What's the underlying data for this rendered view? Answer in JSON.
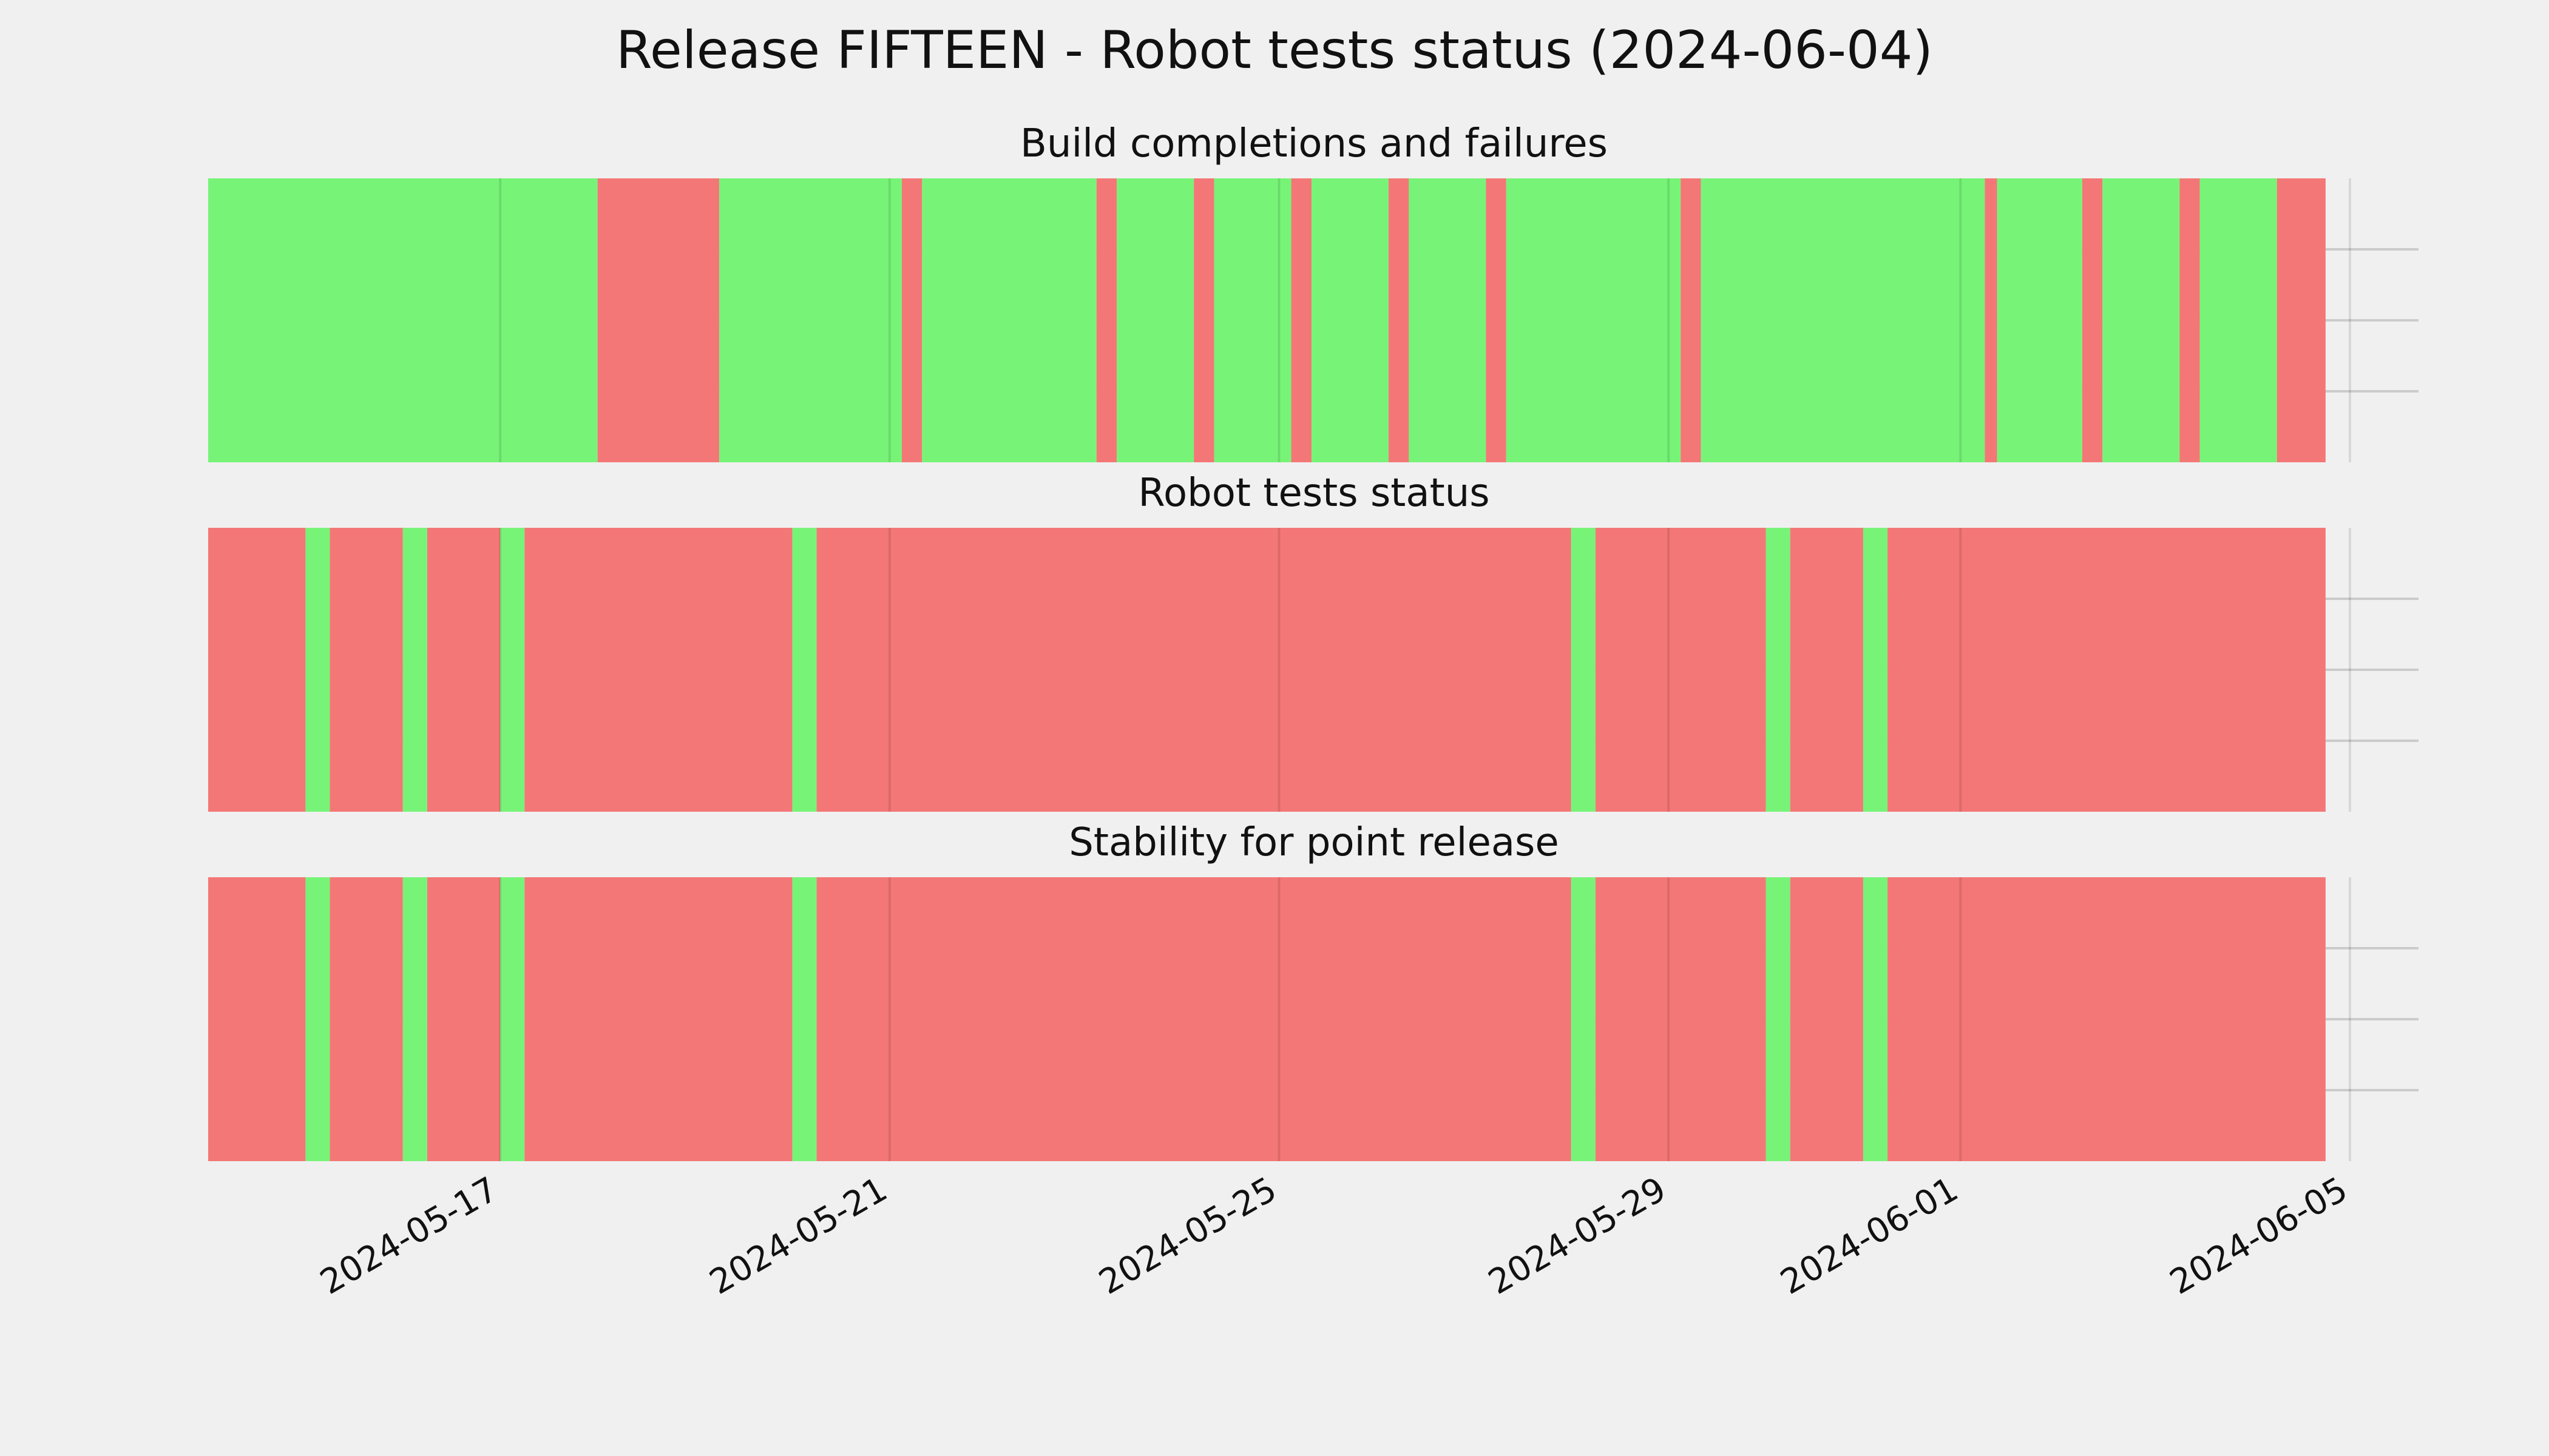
{
  "chart_data": {
    "type": "timeline",
    "title": "Release FIFTEEN - Robot tests status (2024-06-04)",
    "x_axis": {
      "type": "date",
      "range": [
        "2024-05-14T00:00",
        "2024-06-05T00:00"
      ],
      "ticks": [
        "2024-05-17",
        "2024-05-21",
        "2024-05-25",
        "2024-05-29",
        "2024-06-01",
        "2024-06-05"
      ]
    },
    "grid": true,
    "legend": "none",
    "colors": {
      "ok": "#77f477",
      "fail": "#f47777",
      "background": "#f0f0f0",
      "grid": "#cbcbcb"
    },
    "panels": [
      {
        "title": "Build completions and failures",
        "segments": [
          {
            "start": "2024-05-14T00:00",
            "end": "2024-05-18T00:00",
            "status": "ok"
          },
          {
            "start": "2024-05-18T00:00",
            "end": "2024-05-19T06:00",
            "status": "fail"
          },
          {
            "start": "2024-05-19T06:00",
            "end": "2024-05-21T03:00",
            "status": "ok"
          },
          {
            "start": "2024-05-21T03:00",
            "end": "2024-05-21T08:00",
            "status": "fail"
          },
          {
            "start": "2024-05-21T08:00",
            "end": "2024-05-23T03:00",
            "status": "ok"
          },
          {
            "start": "2024-05-23T03:00",
            "end": "2024-05-23T08:00",
            "status": "fail"
          },
          {
            "start": "2024-05-23T08:00",
            "end": "2024-05-24T03:00",
            "status": "ok"
          },
          {
            "start": "2024-05-24T03:00",
            "end": "2024-05-24T08:00",
            "status": "fail"
          },
          {
            "start": "2024-05-24T08:00",
            "end": "2024-05-25T03:00",
            "status": "ok"
          },
          {
            "start": "2024-05-25T03:00",
            "end": "2024-05-25T08:00",
            "status": "fail"
          },
          {
            "start": "2024-05-25T08:00",
            "end": "2024-05-26T03:00",
            "status": "ok"
          },
          {
            "start": "2024-05-26T03:00",
            "end": "2024-05-26T08:00",
            "status": "fail"
          },
          {
            "start": "2024-05-26T08:00",
            "end": "2024-05-27T03:00",
            "status": "ok"
          },
          {
            "start": "2024-05-27T03:00",
            "end": "2024-05-27T08:00",
            "status": "fail"
          },
          {
            "start": "2024-05-27T08:00",
            "end": "2024-05-29T03:00",
            "status": "ok"
          },
          {
            "start": "2024-05-29T03:00",
            "end": "2024-05-29T08:00",
            "status": "fail"
          },
          {
            "start": "2024-05-29T08:00",
            "end": "2024-06-01T06:00",
            "status": "ok"
          },
          {
            "start": "2024-06-01T06:00",
            "end": "2024-06-01T09:00",
            "status": "fail"
          },
          {
            "start": "2024-06-01T09:00",
            "end": "2024-06-02T06:00",
            "status": "ok"
          },
          {
            "start": "2024-06-02T06:00",
            "end": "2024-06-02T11:00",
            "status": "fail"
          },
          {
            "start": "2024-06-02T11:00",
            "end": "2024-06-03T06:00",
            "status": "ok"
          },
          {
            "start": "2024-06-03T06:00",
            "end": "2024-06-03T11:00",
            "status": "fail"
          },
          {
            "start": "2024-06-03T11:00",
            "end": "2024-06-04T06:00",
            "status": "ok"
          },
          {
            "start": "2024-06-04T06:00",
            "end": "2024-06-04T18:00",
            "status": "fail"
          }
        ]
      },
      {
        "title": "Robot tests status",
        "segments": [
          {
            "start": "2024-05-14T00:00",
            "end": "2024-05-15T00:00",
            "status": "fail"
          },
          {
            "start": "2024-05-15T00:00",
            "end": "2024-05-15T06:00",
            "status": "ok"
          },
          {
            "start": "2024-05-15T06:00",
            "end": "2024-05-16T00:00",
            "status": "fail"
          },
          {
            "start": "2024-05-16T00:00",
            "end": "2024-05-16T06:00",
            "status": "ok"
          },
          {
            "start": "2024-05-16T06:00",
            "end": "2024-05-17T00:00",
            "status": "fail"
          },
          {
            "start": "2024-05-17T00:00",
            "end": "2024-05-17T06:00",
            "status": "ok"
          },
          {
            "start": "2024-05-17T06:00",
            "end": "2024-05-20T00:00",
            "status": "fail"
          },
          {
            "start": "2024-05-20T00:00",
            "end": "2024-05-20T06:00",
            "status": "ok"
          },
          {
            "start": "2024-05-20T06:00",
            "end": "2024-05-28T00:00",
            "status": "fail"
          },
          {
            "start": "2024-05-28T00:00",
            "end": "2024-05-28T06:00",
            "status": "ok"
          },
          {
            "start": "2024-05-28T06:00",
            "end": "2024-05-30T00:00",
            "status": "fail"
          },
          {
            "start": "2024-05-30T00:00",
            "end": "2024-05-30T06:00",
            "status": "ok"
          },
          {
            "start": "2024-05-30T06:00",
            "end": "2024-05-31T00:00",
            "status": "fail"
          },
          {
            "start": "2024-05-31T00:00",
            "end": "2024-05-31T06:00",
            "status": "ok"
          },
          {
            "start": "2024-05-31T06:00",
            "end": "2024-06-04T18:00",
            "status": "fail"
          }
        ]
      },
      {
        "title": "Stability for point release",
        "segments": [
          {
            "start": "2024-05-14T00:00",
            "end": "2024-05-15T00:00",
            "status": "fail"
          },
          {
            "start": "2024-05-15T00:00",
            "end": "2024-05-15T06:00",
            "status": "ok"
          },
          {
            "start": "2024-05-15T06:00",
            "end": "2024-05-16T00:00",
            "status": "fail"
          },
          {
            "start": "2024-05-16T00:00",
            "end": "2024-05-16T06:00",
            "status": "ok"
          },
          {
            "start": "2024-05-16T06:00",
            "end": "2024-05-17T00:00",
            "status": "fail"
          },
          {
            "start": "2024-05-17T00:00",
            "end": "2024-05-17T06:00",
            "status": "ok"
          },
          {
            "start": "2024-05-17T06:00",
            "end": "2024-05-20T00:00",
            "status": "fail"
          },
          {
            "start": "2024-05-20T00:00",
            "end": "2024-05-20T06:00",
            "status": "ok"
          },
          {
            "start": "2024-05-20T06:00",
            "end": "2024-05-28T00:00",
            "status": "fail"
          },
          {
            "start": "2024-05-28T00:00",
            "end": "2024-05-28T06:00",
            "status": "ok"
          },
          {
            "start": "2024-05-28T06:00",
            "end": "2024-05-30T00:00",
            "status": "fail"
          },
          {
            "start": "2024-05-30T00:00",
            "end": "2024-05-30T06:00",
            "status": "ok"
          },
          {
            "start": "2024-05-30T06:00",
            "end": "2024-05-31T00:00",
            "status": "fail"
          },
          {
            "start": "2024-05-31T00:00",
            "end": "2024-05-31T06:00",
            "status": "ok"
          },
          {
            "start": "2024-05-31T06:00",
            "end": "2024-06-04T18:00",
            "status": "fail"
          }
        ]
      }
    ]
  }
}
